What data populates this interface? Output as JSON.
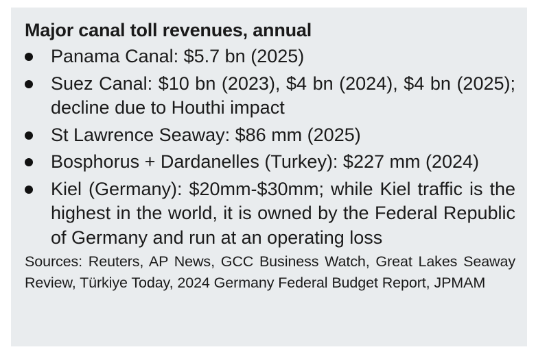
{
  "title": "Major canal toll revenues, annual",
  "bullets": [
    "Panama Canal: $5.7 bn (2025)",
    "Suez Canal: $10 bn (2023), $4 bn (2024), $4 bn (2025); decline due to Houthi impact",
    "St Lawrence Seaway: $86 mm (2025)",
    "Bosphorus + Dardanelles (Turkey): $227 mm (2024)",
    "Kiel (Germany): $20mm-$30mm; while Kiel traffic is the highest in the world, it is owned by the Federal Republic of Germany and run at an operating loss"
  ],
  "sources": "Sources: Reuters, AP News, GCC Business Watch, Great Lakes Seaway Review, Türkiye Today, 2024 Germany Federal Budget Report, JPMAM"
}
